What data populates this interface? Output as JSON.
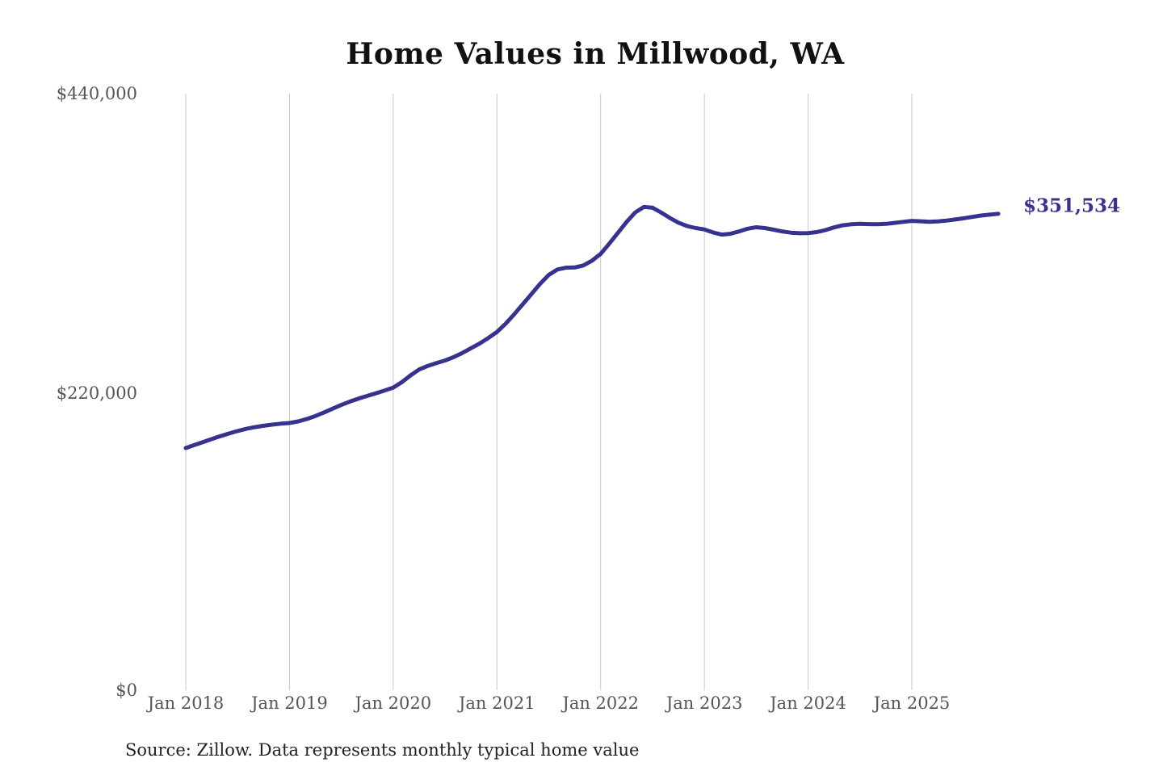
{
  "page": {
    "source_note": "Source: Zillow. Data represents monthly typical home value"
  },
  "chart_data": {
    "type": "line",
    "title": "Home Values in Millwood, WA",
    "xlabel": "",
    "ylabel": "",
    "legend": "none",
    "grid": "vertical-only",
    "ylim": [
      0,
      440000
    ],
    "y_ticks": [
      {
        "label": "$440,000",
        "value": 440000
      },
      {
        "label": "$220,000",
        "value": 220000
      },
      {
        "label": "$0",
        "value": 0
      }
    ],
    "x_ticks": [
      "Jan 2018",
      "Jan 2019",
      "Jan 2020",
      "Jan 2021",
      "Jan 2022",
      "Jan 2023",
      "Jan 2024",
      "Jan 2025"
    ],
    "frequency": "monthly",
    "start_month": "Jan 2018",
    "end_month": "Nov 2025",
    "end_label": "$351,534",
    "final_value": 351534,
    "colors": {
      "line": "#37328f",
      "grid": "#c9c9c9",
      "axis_text": "#555555",
      "end_label": "#37328f"
    },
    "series": [
      {
        "name": "Typical home value",
        "values": [
          179000,
          181200,
          183400,
          185600,
          187700,
          189700,
          191500,
          193100,
          194400,
          195400,
          196200,
          196900,
          197400,
          198600,
          200300,
          202600,
          205200,
          208000,
          210700,
          213200,
          215400,
          217400,
          219300,
          221300,
          223500,
          227500,
          232500,
          236800,
          239500,
          241500,
          243500,
          246000,
          249000,
          252500,
          256000,
          260000,
          264500,
          270500,
          277500,
          285000,
          292500,
          300000,
          306500,
          310500,
          311800,
          312000,
          313500,
          317000,
          322000,
          329500,
          337500,
          345500,
          352500,
          356500,
          356000,
          352500,
          348500,
          345000,
          342500,
          341000,
          340000,
          337800,
          336200,
          336800,
          338500,
          340500,
          341600,
          341000,
          339800,
          338500,
          337600,
          337200,
          337300,
          338000,
          339500,
          341500,
          343000,
          343800,
          344100,
          343900,
          343800,
          344100,
          344800,
          345600,
          346300,
          346000,
          345600,
          345900,
          346500,
          347300,
          348200,
          349200,
          350200,
          350900,
          351534
        ]
      }
    ]
  }
}
